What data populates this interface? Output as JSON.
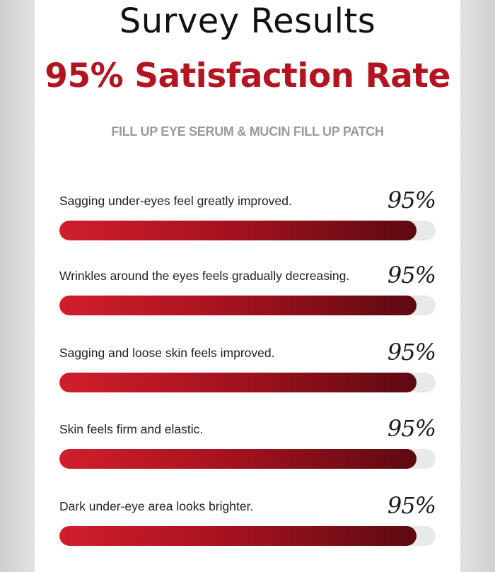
{
  "title": "Survey Results",
  "headline": "95% Satisfaction Rate",
  "subtitle": "FILL UP EYE SERUM & MUCIN FILL UP PATCH",
  "colors": {
    "accent": "#b3141f",
    "bar_start": "#d11e2c",
    "bar_end": "#5c0a12",
    "track": "#e9e9e9"
  },
  "items": [
    {
      "label": "Sagging under-eyes feel greatly improved.",
      "percent_text": "95%",
      "value": 95
    },
    {
      "label": "Wrinkles around the eyes feels gradually decreasing.",
      "percent_text": "95%",
      "value": 95
    },
    {
      "label": "Sagging and loose skin feels improved.",
      "percent_text": "95%",
      "value": 95
    },
    {
      "label": "Skin feels firm and elastic.",
      "percent_text": "95%",
      "value": 95
    },
    {
      "label": "Dark under-eye area looks brighter.",
      "percent_text": "95%",
      "value": 95
    }
  ]
}
